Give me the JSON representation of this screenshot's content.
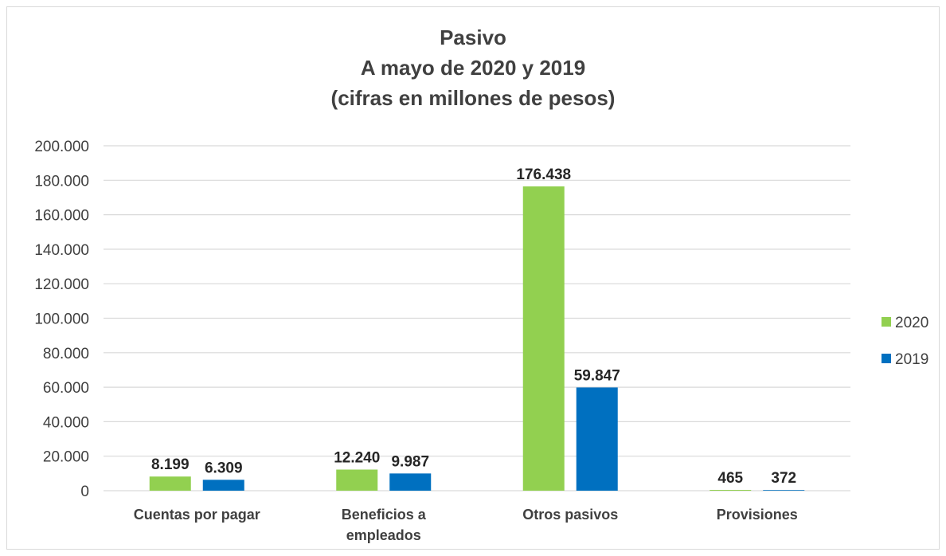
{
  "chart_data": {
    "type": "bar",
    "title_lines": [
      "Pasivo",
      "A mayo de 2020 y 2019",
      "(cifras en millones de pesos)"
    ],
    "xlabel": "",
    "ylabel": "",
    "categories": [
      [
        "Cuentas por pagar"
      ],
      [
        "Beneficios a",
        "empleados"
      ],
      [
        "Otros pasivos"
      ],
      [
        "Provisiones"
      ]
    ],
    "series": [
      {
        "name": "2020",
        "color": "#92d050",
        "values": [
          8199,
          12240,
          176438,
          465
        ],
        "labels": [
          "8.199",
          "12.240",
          "176.438",
          "465"
        ]
      },
      {
        "name": "2019",
        "color": "#0070c0",
        "values": [
          6309,
          9987,
          59847,
          372
        ],
        "labels": [
          "6.309",
          "9.987",
          "59.847",
          "372"
        ]
      }
    ],
    "ylim": [
      0,
      200000
    ],
    "yticks": [
      {
        "v": 0,
        "label": "0"
      },
      {
        "v": 20000,
        "label": "20.000"
      },
      {
        "v": 40000,
        "label": "40.000"
      },
      {
        "v": 60000,
        "label": "60.000"
      },
      {
        "v": 80000,
        "label": "80.000"
      },
      {
        "v": 100000,
        "label": "100.000"
      },
      {
        "v": 120000,
        "label": "120.000"
      },
      {
        "v": 140000,
        "label": "140.000"
      },
      {
        "v": 160000,
        "label": "160.000"
      },
      {
        "v": 180000,
        "label": "180.000"
      },
      {
        "v": 200000,
        "label": "200.000"
      }
    ],
    "grid": true,
    "legend_position": "right",
    "gridline_color": "#d9d9d9"
  }
}
